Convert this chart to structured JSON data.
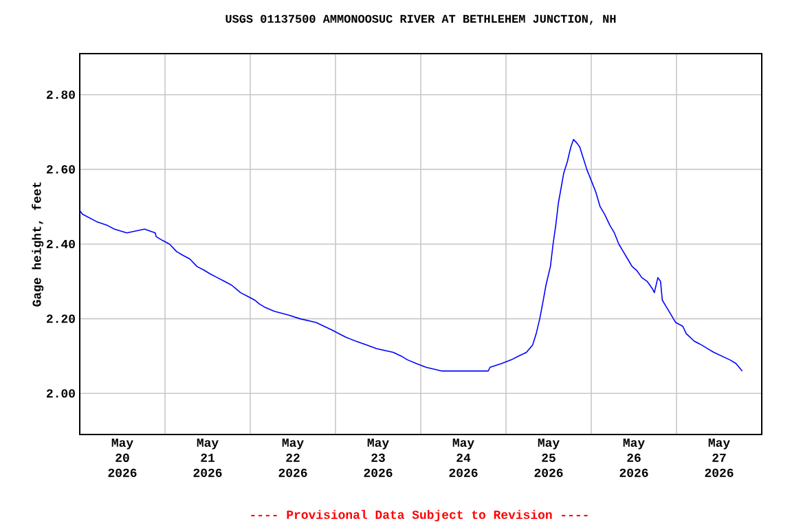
{
  "chart_data": {
    "type": "line",
    "title": "USGS 01137500 AMMONOOSUC RIVER AT BETHLEHEM JUNCTION, NH",
    "ylabel": "Gage height, feet",
    "annotations": [
      "---- Provisional Data Subject to Revision ----"
    ],
    "xlim": [
      "2026-05-20T00:00",
      "2026-05-28T00:00"
    ],
    "xticks": [
      {
        "value": "2026-05-20T12:00",
        "label": "May 20 2026"
      },
      {
        "value": "2026-05-21T12:00",
        "label": "May 21 2026"
      },
      {
        "value": "2026-05-22T12:00",
        "label": "May 22 2026"
      },
      {
        "value": "2026-05-23T12:00",
        "label": "May 23 2026"
      },
      {
        "value": "2026-05-24T12:00",
        "label": "May 24 2026"
      },
      {
        "value": "2026-05-25T12:00",
        "label": "May 25 2026"
      },
      {
        "value": "2026-05-26T12:00",
        "label": "May 26 2026"
      },
      {
        "value": "2026-05-27T12:00",
        "label": "May 27 2026"
      },
      {
        "value": "2026-05-21T00:00",
        "label": null
      },
      {
        "value": "2026-05-22T00:00",
        "label": null
      },
      {
        "value": "2026-05-23T00:00",
        "label": null
      },
      {
        "value": "2026-05-24T00:00",
        "label": null
      },
      {
        "value": "2026-05-25T00:00",
        "label": null
      },
      {
        "value": "2026-05-26T00:00",
        "label": null
      },
      {
        "value": "2026-05-27T00:00",
        "label": null
      }
    ],
    "ylim": [
      1.89,
      2.91
    ],
    "yticks": [
      {
        "value": 2.0,
        "label": "2.00"
      },
      {
        "value": 2.2,
        "label": "2.20"
      },
      {
        "value": 2.4,
        "label": "2.40"
      },
      {
        "value": 2.6,
        "label": "2.60"
      },
      {
        "value": 2.8,
        "label": "2.80"
      }
    ],
    "grid": true,
    "series": [
      {
        "color": "#0000ff",
        "x": [
          "2026-05-20T00:00",
          "2026-05-20T00:45",
          "2026-05-20T02:45",
          "2026-05-20T04:45",
          "2026-05-20T07:45",
          "2026-05-20T09:45",
          "2026-05-20T13:15",
          "2026-05-20T18:15",
          "2026-05-20T21:15",
          "2026-05-20T21:30",
          "2026-05-20T23:15",
          "2026-05-21T01:15",
          "2026-05-21T03:15",
          "2026-05-21T05:00",
          "2026-05-21T07:00",
          "2026-05-21T09:00",
          "2026-05-21T11:00",
          "2026-05-21T12:45",
          "2026-05-21T14:45",
          "2026-05-21T16:45",
          "2026-05-21T18:45",
          "2026-05-21T20:00",
          "2026-05-21T21:15",
          "2026-05-21T23:15",
          "2026-05-22T01:15",
          "2026-05-22T02:30",
          "2026-05-22T04:15",
          "2026-05-22T06:45",
          "2026-05-22T10:45",
          "2026-05-22T14:00",
          "2026-05-22T18:30",
          "2026-05-22T20:45",
          "2026-05-22T23:00",
          "2026-05-23T01:00",
          "2026-05-23T03:00",
          "2026-05-23T05:45",
          "2026-05-23T08:45",
          "2026-05-23T11:30",
          "2026-05-23T16:15",
          "2026-05-23T18:30",
          "2026-05-23T20:15",
          "2026-05-23T22:45",
          "2026-05-24T01:30",
          "2026-05-24T06:00",
          "2026-05-24T19:00",
          "2026-05-24T19:30",
          "2026-05-24T22:45",
          "2026-05-25T01:30",
          "2026-05-25T03:30",
          "2026-05-25T05:45",
          "2026-05-25T07:30",
          "2026-05-25T08:30",
          "2026-05-25T09:30",
          "2026-05-25T10:30",
          "2026-05-25T11:15",
          "2026-05-25T12:30",
          "2026-05-25T13:15",
          "2026-05-25T14:00",
          "2026-05-25T14:45",
          "2026-05-25T15:30",
          "2026-05-25T16:15",
          "2026-05-25T17:15",
          "2026-05-25T18:15",
          "2026-05-25T19:00",
          "2026-05-25T20:00",
          "2026-05-25T20:45",
          "2026-05-25T21:45",
          "2026-05-25T22:45",
          "2026-05-26T00:00",
          "2026-05-26T01:15",
          "2026-05-26T02:30",
          "2026-05-26T03:45",
          "2026-05-26T05:15",
          "2026-05-26T06:30",
          "2026-05-26T07:45",
          "2026-05-26T09:00",
          "2026-05-26T10:15",
          "2026-05-26T11:30",
          "2026-05-26T12:45",
          "2026-05-26T14:15",
          "2026-05-26T15:45",
          "2026-05-26T17:15",
          "2026-05-26T17:45",
          "2026-05-26T18:45",
          "2026-05-26T19:30",
          "2026-05-26T20:00",
          "2026-05-26T21:15",
          "2026-05-26T22:30",
          "2026-05-26T23:45",
          "2026-05-27T01:45",
          "2026-05-27T02:45",
          "2026-05-27T05:00",
          "2026-05-27T07:00",
          "2026-05-27T08:45",
          "2026-05-27T10:30",
          "2026-05-27T12:45",
          "2026-05-27T15:00",
          "2026-05-27T16:45",
          "2026-05-27T18:30"
        ],
        "values": [
          2.49,
          2.48,
          2.47,
          2.46,
          2.45,
          2.44,
          2.43,
          2.44,
          2.43,
          2.42,
          2.41,
          2.4,
          2.38,
          2.37,
          2.36,
          2.34,
          2.33,
          2.32,
          2.31,
          2.3,
          2.29,
          2.28,
          2.27,
          2.26,
          2.25,
          2.24,
          2.23,
          2.22,
          2.21,
          2.2,
          2.19,
          2.18,
          2.17,
          2.16,
          2.15,
          2.14,
          2.13,
          2.12,
          2.11,
          2.1,
          2.09,
          2.08,
          2.07,
          2.06,
          2.06,
          2.07,
          2.08,
          2.09,
          2.1,
          2.11,
          2.13,
          2.16,
          2.2,
          2.25,
          2.29,
          2.34,
          2.4,
          2.45,
          2.51,
          2.55,
          2.59,
          2.62,
          2.66,
          2.68,
          2.67,
          2.66,
          2.63,
          2.6,
          2.57,
          2.54,
          2.5,
          2.48,
          2.45,
          2.43,
          2.4,
          2.38,
          2.36,
          2.34,
          2.33,
          2.31,
          2.3,
          2.28,
          2.27,
          2.31,
          2.3,
          2.25,
          2.23,
          2.21,
          2.19,
          2.18,
          2.16,
          2.14,
          2.13,
          2.12,
          2.11,
          2.1,
          2.09,
          2.08,
          2.06
        ]
      }
    ]
  }
}
